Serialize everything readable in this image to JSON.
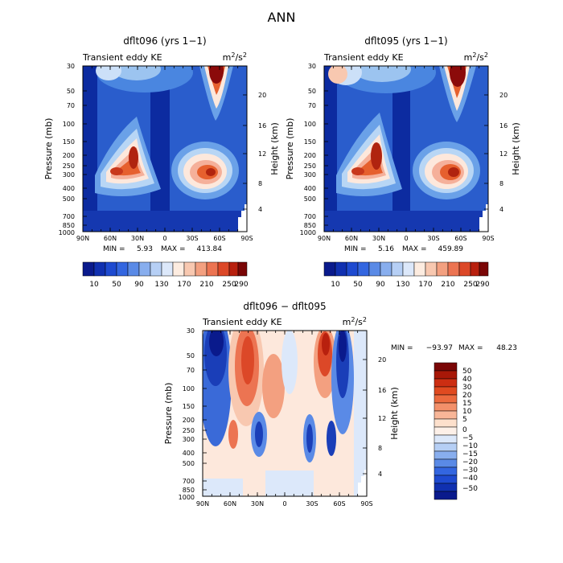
{
  "figure": {
    "main_title": "ANN"
  },
  "chart_data": [
    {
      "type": "heatmap",
      "title": "dflt096 (yrs 1−1)",
      "subtitle_left": "Transient eddy KE",
      "units": "m²/s²",
      "x_tick_labels": [
        "90N",
        "60N",
        "30N",
        "0",
        "30S",
        "60S",
        "90S"
      ],
      "y_tick_labels": [
        "30",
        "50",
        "70",
        "100",
        "150",
        "200",
        "250",
        "300",
        "400",
        "500",
        "700",
        "850",
        "1000"
      ],
      "y2_tick_labels": [
        "20",
        "16",
        "12",
        "8",
        "4"
      ],
      "ylabel": "Pressure (mb)",
      "y2label": "Height (km)",
      "min_label": "MIN =",
      "min": "5.93",
      "max_label": "MAX =",
      "max": "413.84",
      "colorbar_labels": [
        "10",
        "50",
        "90",
        "130",
        "170",
        "210",
        "250",
        "290"
      ],
      "features": [
        {
          "lat": 23,
          "p": 200,
          "value": 300
        },
        {
          "lat": 45,
          "p": 270,
          "value": 280
        },
        {
          "lat": -50,
          "p": 250,
          "value": 300
        },
        {
          "lat": -62,
          "p": 280,
          "value": 310
        },
        {
          "lat": -65,
          "p": 30,
          "value": 330
        },
        {
          "lat": 72,
          "p": 40,
          "value": 60
        }
      ]
    },
    {
      "type": "heatmap",
      "title": "dflt095 (yrs 1−1)",
      "subtitle_left": "Transient eddy KE",
      "units": "m²/s²",
      "x_tick_labels": [
        "90N",
        "60N",
        "30N",
        "0",
        "30S",
        "60S",
        "90S"
      ],
      "y_tick_labels": [
        "30",
        "50",
        "70",
        "100",
        "150",
        "200",
        "250",
        "300",
        "400",
        "500",
        "700",
        "850",
        "1000"
      ],
      "y2_tick_labels": [
        "20",
        "16",
        "12",
        "8",
        "4"
      ],
      "ylabel": "Pressure (mb)",
      "y2label": "Height (km)",
      "min_label": "MIN =",
      "min": "5.16",
      "max_label": "MAX =",
      "max": "459.89",
      "colorbar_labels": [
        "10",
        "50",
        "90",
        "130",
        "170",
        "210",
        "250",
        "290"
      ],
      "features": [
        {
          "lat": 28,
          "p": 200,
          "value": 320
        },
        {
          "lat": 48,
          "p": 270,
          "value": 280
        },
        {
          "lat": -50,
          "p": 250,
          "value": 300
        },
        {
          "lat": -62,
          "p": 280,
          "value": 330
        },
        {
          "lat": -63,
          "p": 32,
          "value": 350
        },
        {
          "lat": 78,
          "p": 35,
          "value": 140
        }
      ]
    },
    {
      "type": "heatmap",
      "title": "dflt096 − dflt095",
      "subtitle_left": "Transient eddy KE",
      "units": "m²/s²",
      "x_tick_labels": [
        "90N",
        "60N",
        "30N",
        "0",
        "30S",
        "60S",
        "90S"
      ],
      "y_tick_labels": [
        "30",
        "50",
        "70",
        "100",
        "150",
        "200",
        "250",
        "300",
        "400",
        "500",
        "700",
        "850",
        "1000"
      ],
      "y2_tick_labels": [
        "20",
        "16",
        "12",
        "8",
        "4"
      ],
      "ylabel": "Pressure (mb)",
      "y2label": "Height (km)",
      "min_label": "MIN =",
      "min": "−93.97",
      "max_label": "MAX =",
      "max": "48.23",
      "colorbar_labels": [
        "50",
        "40",
        "30",
        "20",
        "15",
        "10",
        "5",
        "0",
        "−5",
        "−10",
        "−15",
        "−20",
        "−30",
        "−40",
        "−50"
      ],
      "features": [
        {
          "lat": 75,
          "p": 35,
          "value": -50
        },
        {
          "lat": 45,
          "p": 50,
          "value": 25
        },
        {
          "lat": 30,
          "p": 280,
          "value": -30
        },
        {
          "lat": -30,
          "p": 250,
          "value": -30
        },
        {
          "lat": -50,
          "p": 35,
          "value": 40
        },
        {
          "lat": -62,
          "p": 50,
          "value": -60
        }
      ]
    }
  ]
}
